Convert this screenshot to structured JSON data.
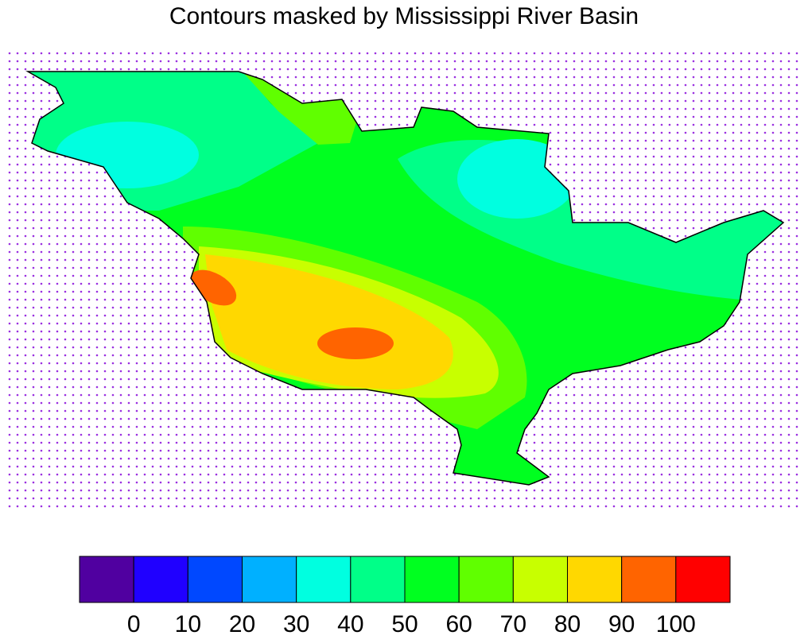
{
  "title": "Contours masked by Mississippi River Basin",
  "legend": {
    "levels": [
      0,
      10,
      20,
      30,
      40,
      50,
      60,
      70,
      80,
      90,
      100
    ],
    "colors": [
      "#5000a0",
      "#2000ff",
      "#0048ff",
      "#00b0ff",
      "#00ffe0",
      "#00ff88",
      "#00ff20",
      "#60ff00",
      "#c8ff00",
      "#ffd800",
      "#ff6400",
      "#ff0000"
    ]
  }
}
